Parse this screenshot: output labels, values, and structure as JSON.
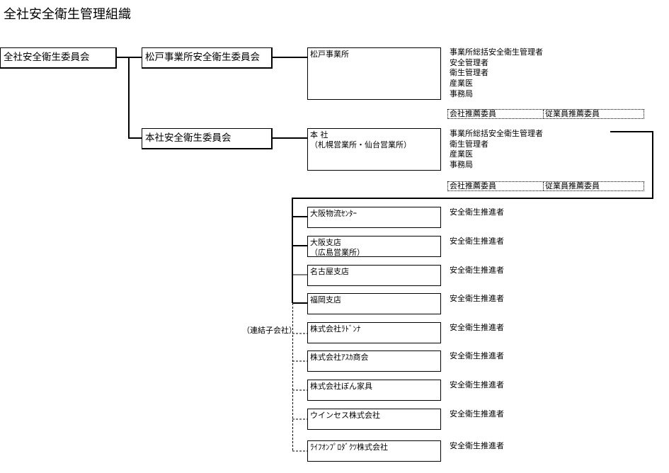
{
  "title": "全社安全衛生管理組織",
  "top_committee": "全社安全衛生委員会",
  "committees": [
    {
      "name": "松戸事業所安全衛生委員会",
      "site": "松戸事業所",
      "roles": [
        "事業所総括安全衛生管理者",
        "安全管理者",
        "衛生管理者",
        "産業医",
        "事務局"
      ],
      "members": [
        "会社推薦委員",
        "従業員推薦委員"
      ]
    },
    {
      "name": "本社安全衛生委員会",
      "site": "本 社\n（札幌営業所・仙台営業所）",
      "roles": [
        "事業所総括安全衛生管理者",
        "衛生管理者",
        "産業医",
        "事務局"
      ],
      "members": [
        "会社推薦委員",
        "従業員推薦委員"
      ]
    }
  ],
  "subsidiary_label": "（連結子会社）",
  "branches": [
    {
      "name": "大阪物流ｾﾝﾀｰ",
      "role": "安全衛生推進者"
    },
    {
      "name": "大阪支店\n（広島営業所）",
      "role": "安全衛生推進者"
    },
    {
      "name": "名古屋支店",
      "role": "安全衛生推進者"
    },
    {
      "name": "福岡支店",
      "role": "安全衛生推進者"
    },
    {
      "name": "株式会社ﾗﾄﾞﾝﾅ",
      "role": "安全衛生推進者"
    },
    {
      "name": "株式会社ｱｽｶ商会",
      "role": "安全衛生推進者"
    },
    {
      "name": "株式会社ぼん家具",
      "role": "安全衛生推進者"
    },
    {
      "name": "ウインセス株式会社",
      "role": "安全衛生推進者"
    },
    {
      "name": "ﾗｲﾌｵﾝﾌﾟﾛﾀﾞｸﾂ株式会社",
      "role": "安全衛生推進者"
    }
  ]
}
